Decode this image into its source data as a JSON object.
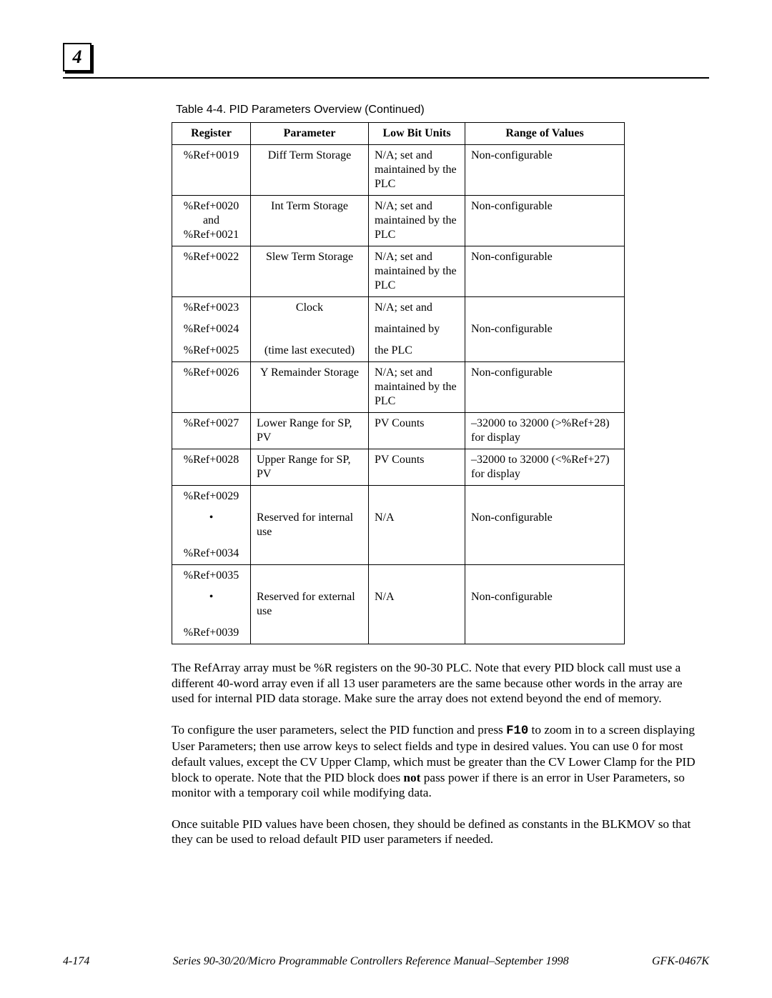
{
  "page_badge": "4",
  "table_caption": "Table 4-4.  PID Parameters Overview (Continued)",
  "headers": {
    "register": "Register",
    "parameter": "Parameter",
    "low_bit_units": "Low Bit Units",
    "range": "Range of Values"
  },
  "rows": {
    "r1": {
      "reg": "%Ref+0019",
      "param": "Diff Term Storage",
      "low": "N/A; set and maintained by the PLC",
      "range": "Non-configurable"
    },
    "r2": {
      "reg": "%Ref+0020 and %Ref+0021",
      "param": "Int Term Storage",
      "low": "N/A; set and maintained by the PLC",
      "range": "Non-configurable"
    },
    "r3": {
      "reg": "%Ref+0022",
      "param": "Slew Term Storage",
      "low": "N/A; set and maintained by the PLC",
      "range": "Non-configurable"
    },
    "r4a": {
      "reg": "%Ref+0023",
      "param": "Clock",
      "low": "N/A; set and"
    },
    "r4b": {
      "reg": "%Ref+0024",
      "low": "maintained by",
      "range": "Non-configurable"
    },
    "r4c": {
      "reg": "%Ref+0025",
      "param": "(time last executed)",
      "low": "the PLC"
    },
    "r5": {
      "reg": "%Ref+0026",
      "param": "Y Remainder Storage",
      "low": "N/A; set and maintained by the PLC",
      "range": "Non-configurable"
    },
    "r6": {
      "reg": "%Ref+0027",
      "param": "Lower Range for SP, PV",
      "low": "PV Counts",
      "range": "–32000 to 32000 (>%Ref+28) for display"
    },
    "r7": {
      "reg": "%Ref+0028",
      "param": "Upper Range for SP, PV",
      "low": "PV Counts",
      "range": "–32000 to 32000 (<%Ref+27) for display"
    },
    "r8a": {
      "reg": "%Ref+0029"
    },
    "r8b": {
      "reg": "•",
      "param": "Reserved for internal use",
      "low": "N/A",
      "range": "Non-configurable"
    },
    "r8c": {
      "reg": "%Ref+0034"
    },
    "r9a": {
      "reg": "%Ref+0035"
    },
    "r9b": {
      "reg": "•",
      "param": "Reserved for external use",
      "low": "N/A",
      "range": "Non-configurable"
    },
    "r9c": {
      "reg": "%Ref+0039"
    }
  },
  "paragraphs": {
    "p1": "The RefArray array must be %R registers on the 90-30 PLC. Note that every PID block call must use a different 40-word array even if all 13 user parameters are the same because other words in the array are used for internal PID data storage. Make sure the array does not extend beyond the end of memory.",
    "p2a": "To configure the user parameters, select the PID function and press ",
    "p2key": "F10",
    "p2b": " to zoom in to a screen displaying User Parameters; then use arrow keys to select fields and type in desired values. You can use 0 for most default values, except the CV Upper Clamp, which must be greater than the CV Lower Clamp for the PID block to operate. Note that the PID block does ",
    "p2bold": "not",
    "p2c": " pass power if there is an error in User Parameters, so monitor with a temporary coil while modifying data.",
    "p3": "Once suitable PID values have been chosen, they should be defined as constants in the BLKMOV so that they can be used to reload default PID user parameters if needed."
  },
  "footer": {
    "page": "4-174",
    "title": "Series 90-30/20/Micro Programmable Controllers Reference Manual–September 1998",
    "doc": "GFK-0467K"
  }
}
